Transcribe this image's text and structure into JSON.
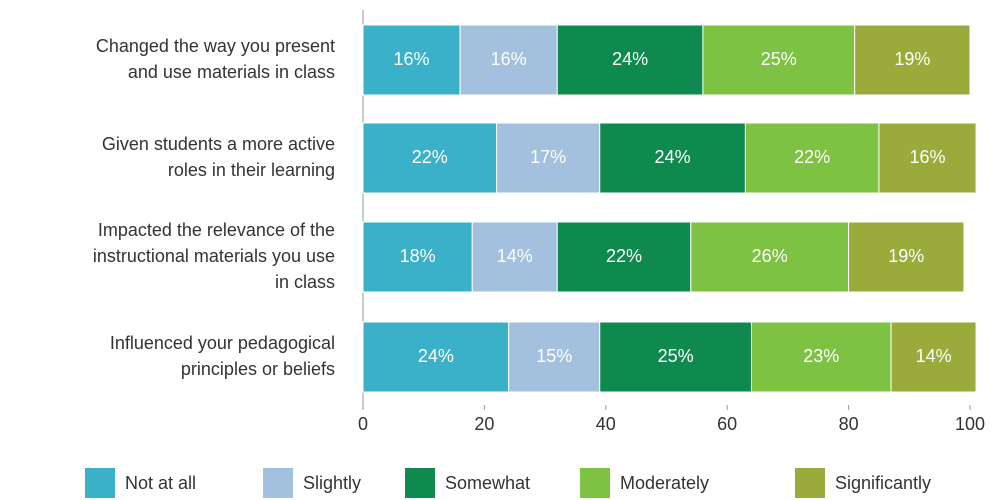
{
  "chart_data": {
    "type": "bar",
    "orientation": "horizontal",
    "stacked": true,
    "categories": [
      "Changed the way you present\nand use materials in class",
      "Given students a more active\nroles in their learning",
      "Impacted the relevance of the\ninstructional materials you use\nin class",
      "Influenced your pedagogical\nprinciples or beliefs"
    ],
    "series": [
      {
        "name": "Not at all",
        "color": "#3bb1c9",
        "values": [
          16,
          22,
          18,
          24
        ],
        "value_labels": [
          "16%",
          "22%",
          "18%",
          "24%"
        ]
      },
      {
        "name": "Slightly",
        "color": "#a3c1de",
        "values": [
          16,
          17,
          14,
          15
        ],
        "value_labels": [
          "16%",
          "17%",
          "14%",
          "15%"
        ]
      },
      {
        "name": "Somewhat",
        "color": "#0f8a4f",
        "values": [
          24,
          24,
          22,
          25
        ],
        "value_labels": [
          "24%",
          "24%",
          "22%",
          "25%"
        ]
      },
      {
        "name": "Moderately",
        "color": "#7dc242",
        "values": [
          25,
          22,
          26,
          23
        ],
        "value_labels": [
          "25%",
          "22%",
          "26%",
          "23%"
        ]
      },
      {
        "name": "Significantly",
        "color": "#9aab3c",
        "values": [
          19,
          16,
          19,
          14
        ],
        "value_labels": [
          "19%",
          "16%",
          "19%",
          "14%"
        ]
      }
    ],
    "xlim": [
      0,
      100
    ],
    "xticks": [
      0,
      20,
      40,
      60,
      80,
      100
    ],
    "legend": "bottom"
  }
}
